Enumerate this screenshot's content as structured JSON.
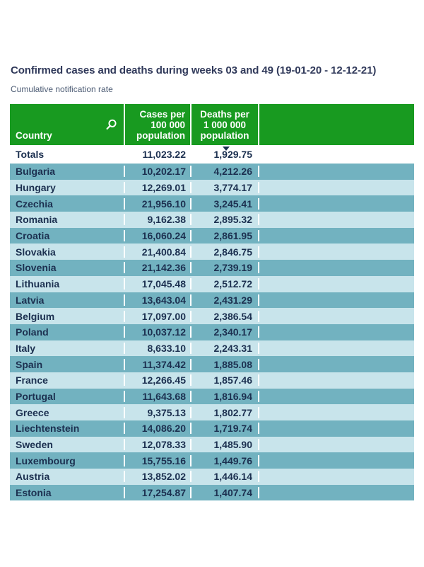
{
  "header": {
    "title": "Confirmed cases and deaths during weeks 03 and 49 (19-01-20 - 12-12-21)",
    "subtitle": "Cumulative notification rate"
  },
  "table": {
    "header": {
      "country": "Country",
      "cases_lines": [
        "Cases per",
        "100 000",
        "population"
      ],
      "deaths_lines": [
        "Deaths per",
        "1 000 000",
        "population"
      ],
      "search_icon": "magnifier",
      "sort": {
        "column": "deaths",
        "direction": "descending",
        "glyph": "▼"
      }
    },
    "totals": {
      "label": "Totals",
      "cases": "11,023.22",
      "deaths": "1,929.75"
    }
  },
  "colors": {
    "header_bg": "#189A20",
    "header_text": "#FFFFFF",
    "row_dark": "#72B2C0",
    "row_light": "#C8E4EB",
    "totals_bg": "#FFFFFF",
    "row_text": "#1C3050",
    "title_text": "#30395A",
    "subtitle_text": "#4E5D75"
  },
  "chart_data": {
    "type": "table",
    "title": "Confirmed cases and deaths during weeks 03 and 49 (19-01-20 - 12-12-21)",
    "subtitle": "Cumulative notification rate",
    "columns": [
      "Country",
      "Cases per 100 000 population",
      "Deaths per 1 000 000 population"
    ],
    "sorted_by": "Deaths per 1 000 000 population (descending)",
    "totals_row": {
      "country": "Totals",
      "cases": "11,023.22",
      "deaths": "1,929.75"
    },
    "rows": [
      {
        "country": "Bulgaria",
        "cases": "10,202.17",
        "deaths": "4,212.26"
      },
      {
        "country": "Hungary",
        "cases": "12,269.01",
        "deaths": "3,774.17"
      },
      {
        "country": "Czechia",
        "cases": "21,956.10",
        "deaths": "3,245.41"
      },
      {
        "country": "Romania",
        "cases": "9,162.38",
        "deaths": "2,895.32"
      },
      {
        "country": "Croatia",
        "cases": "16,060.24",
        "deaths": "2,861.95"
      },
      {
        "country": "Slovakia",
        "cases": "21,400.84",
        "deaths": "2,846.75"
      },
      {
        "country": "Slovenia",
        "cases": "21,142.36",
        "deaths": "2,739.19"
      },
      {
        "country": "Lithuania",
        "cases": "17,045.48",
        "deaths": "2,512.72"
      },
      {
        "country": "Latvia",
        "cases": "13,643.04",
        "deaths": "2,431.29"
      },
      {
        "country": "Belgium",
        "cases": "17,097.00",
        "deaths": "2,386.54"
      },
      {
        "country": "Poland",
        "cases": "10,037.12",
        "deaths": "2,340.17"
      },
      {
        "country": "Italy",
        "cases": "8,633.10",
        "deaths": "2,243.31"
      },
      {
        "country": "Spain",
        "cases": "11,374.42",
        "deaths": "1,885.08"
      },
      {
        "country": "France",
        "cases": "12,266.45",
        "deaths": "1,857.46"
      },
      {
        "country": "Portugal",
        "cases": "11,643.68",
        "deaths": "1,816.94"
      },
      {
        "country": "Greece",
        "cases": "9,375.13",
        "deaths": "1,802.77"
      },
      {
        "country": "Liechtenstein",
        "cases": "14,086.20",
        "deaths": "1,719.74"
      },
      {
        "country": "Sweden",
        "cases": "12,078.33",
        "deaths": "1,485.90"
      },
      {
        "country": "Luxembourg",
        "cases": "15,755.16",
        "deaths": "1,449.76"
      },
      {
        "country": "Austria",
        "cases": "13,852.02",
        "deaths": "1,446.14"
      },
      {
        "country": "Estonia",
        "cases": "17,254.87",
        "deaths": "1,407.74"
      }
    ]
  }
}
